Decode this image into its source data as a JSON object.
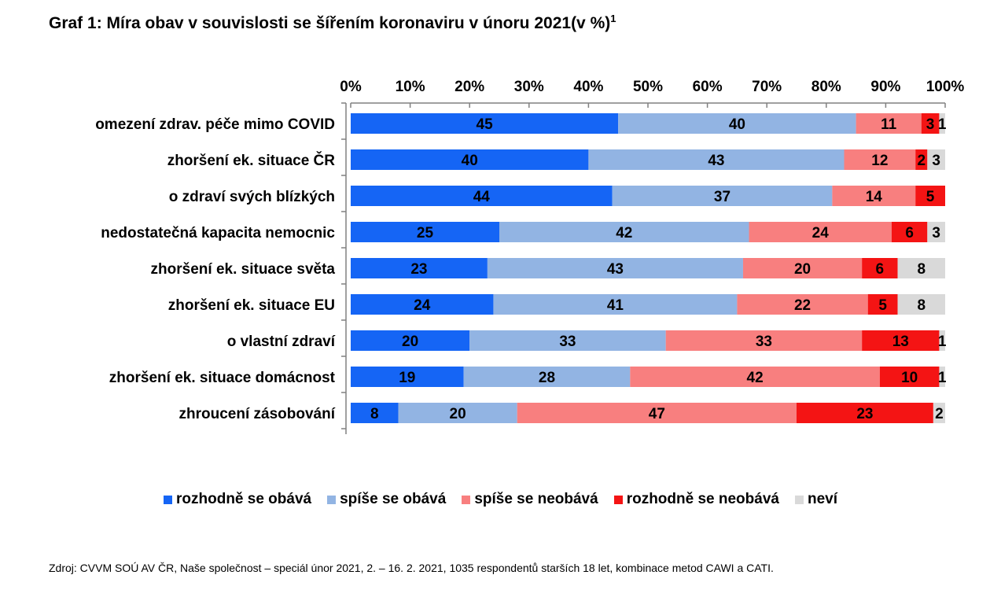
{
  "title": "Graf 1: Míra obav v souvislosti se šířením koronaviru v únoru 2021(v %)",
  "title_sup": "1",
  "source": "Zdroj: CVVM SOÚ AV ČR, Naše společnost – speciál únor 2021, 2. – 16. 2. 2021, 1035 respondentů starších 18 let, kombinace metod CAWI a CATI.",
  "chart_data": {
    "type": "bar",
    "orientation": "horizontal",
    "stacked": true,
    "xlim": [
      0,
      100
    ],
    "x_tick_labels": [
      "0%",
      "10%",
      "20%",
      "30%",
      "40%",
      "50%",
      "60%",
      "70%",
      "80%",
      "90%",
      "100%"
    ],
    "x_axis_position": "top",
    "legend_position": "bottom",
    "grid": false,
    "categories": [
      "omezení zdrav. péče mimo COVID",
      "zhoršení ek. situace ČR",
      "o zdraví svých blízkých",
      "nedostatečná kapacita nemocnic",
      "zhoršení ek. situace světa",
      "zhoršení ek. situace EU",
      "o vlastní zdraví",
      "zhoršení ek. situace domácnost",
      "zhroucení zásobování"
    ],
    "series": [
      {
        "name": "rozhodně se obává",
        "color": "#1565f5",
        "values": [
          45,
          40,
          44,
          25,
          23,
          24,
          20,
          19,
          8
        ]
      },
      {
        "name": "spíše se obává",
        "color": "#92b4e3",
        "values": [
          40,
          43,
          37,
          42,
          43,
          41,
          33,
          28,
          20
        ]
      },
      {
        "name": "spíše se neobává",
        "color": "#f87f7f",
        "values": [
          11,
          12,
          14,
          24,
          20,
          22,
          33,
          42,
          47
        ]
      },
      {
        "name": "rozhodně se neobává",
        "color": "#f41414",
        "values": [
          3,
          2,
          5,
          6,
          6,
          5,
          13,
          10,
          23
        ]
      },
      {
        "name": "neví",
        "color": "#d9d9d9",
        "values": [
          1,
          3,
          0,
          3,
          8,
          8,
          1,
          1,
          2
        ]
      }
    ],
    "value_labels_shown": [
      [
        true,
        true,
        true,
        true,
        true
      ],
      [
        true,
        true,
        true,
        true,
        true
      ],
      [
        true,
        true,
        true,
        true,
        false
      ],
      [
        true,
        true,
        true,
        true,
        true
      ],
      [
        true,
        true,
        true,
        true,
        true
      ],
      [
        true,
        true,
        true,
        true,
        true
      ],
      [
        true,
        true,
        true,
        true,
        true
      ],
      [
        true,
        true,
        true,
        true,
        true
      ],
      [
        true,
        true,
        true,
        true,
        true
      ]
    ]
  }
}
